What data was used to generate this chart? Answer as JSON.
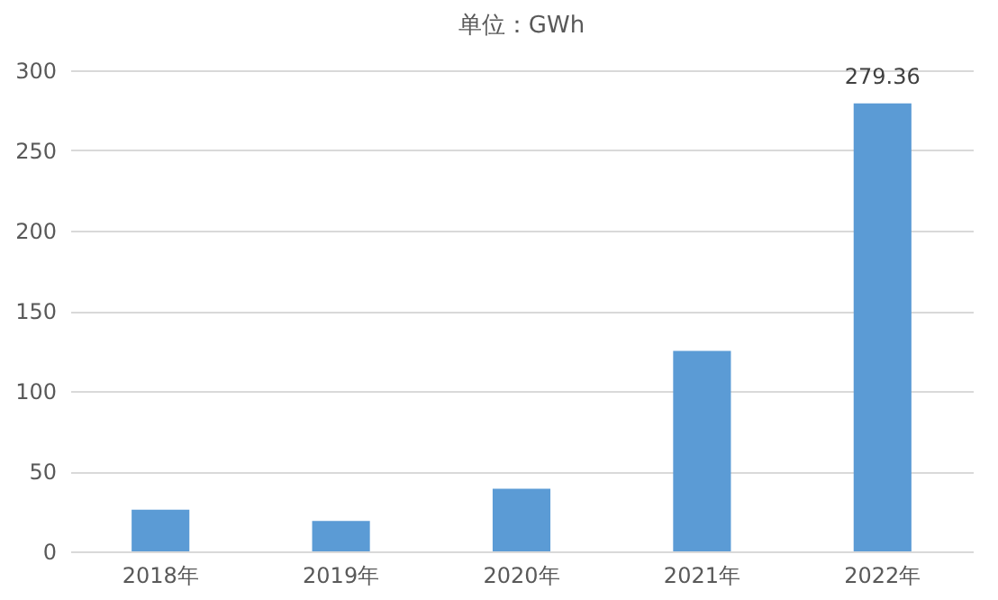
{
  "chart_data": {
    "type": "bar",
    "title": "单位：GWh",
    "categories": [
      "2018年",
      "2019年",
      "2020年",
      "2021年",
      "2022年"
    ],
    "values": [
      26,
      19,
      39,
      125,
      279.36
    ],
    "value_labels": [
      null,
      null,
      null,
      null,
      "279.36"
    ],
    "color": "#5b9bd5",
    "ylim": [
      0,
      300
    ],
    "yticks": [
      0,
      50,
      100,
      150,
      200,
      250,
      300
    ],
    "grid": "y"
  }
}
